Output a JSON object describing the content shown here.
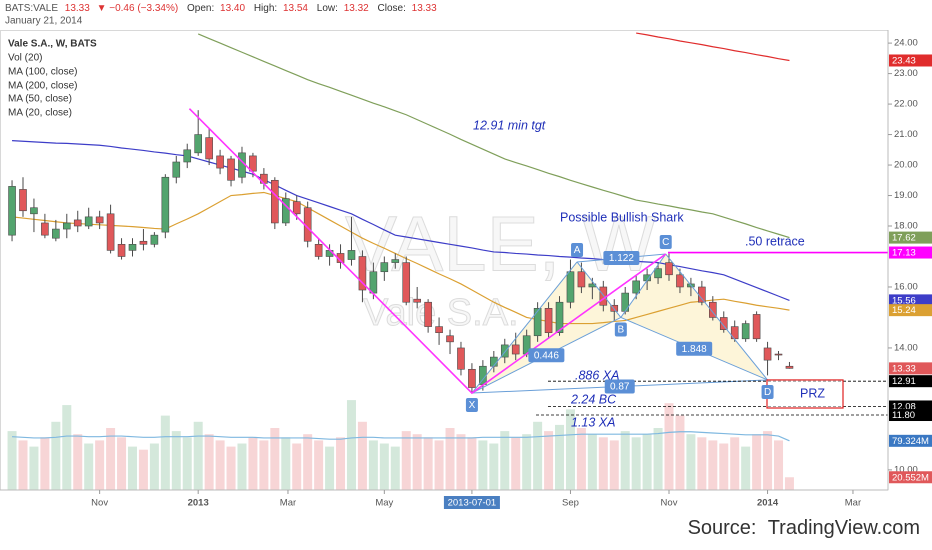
{
  "header": {
    "symbol": "BATS:VALE",
    "price": "13.33",
    "change": "▼ −0.46 (−3.34%)",
    "fields": [
      {
        "name": "Open:",
        "value": "13.40"
      },
      {
        "name": "High:",
        "value": "13.54"
      },
      {
        "name": "Low:",
        "value": "13.32"
      },
      {
        "name": "Close:",
        "value": "13.33"
      }
    ],
    "date": "January 21, 2014"
  },
  "footer": {
    "label": "Source:",
    "site": "TradingView.com"
  },
  "chart_data": {
    "type": "candlestick",
    "title": "Vale S.A., W, BATS",
    "watermark": {
      "symbol": "VALE, W",
      "name": "Vale S.A."
    },
    "x": [
      0,
      1,
      2,
      3,
      4,
      5,
      6,
      7,
      8,
      9,
      10,
      11,
      12,
      13,
      14,
      15,
      16,
      17,
      18,
      19,
      20,
      21,
      22,
      23,
      24,
      25,
      26,
      27,
      28,
      29,
      30,
      31,
      32,
      33,
      34,
      35,
      36,
      37,
      38,
      39,
      40,
      41,
      42,
      43,
      44,
      45,
      46,
      47,
      48,
      49,
      50,
      51,
      52,
      53,
      54,
      55,
      56,
      57,
      58,
      59,
      60,
      61,
      62,
      63,
      64,
      65,
      66,
      67,
      68,
      69,
      70,
      71
    ],
    "open": [
      17.7,
      19.2,
      18.4,
      18.1,
      17.6,
      17.9,
      18.2,
      18.0,
      18.3,
      18.4,
      17.4,
      17.2,
      17.5,
      17.4,
      17.8,
      19.6,
      20.1,
      20.4,
      20.9,
      20.3,
      20.2,
      19.6,
      20.3,
      19.7,
      19.5,
      18.1,
      18.8,
      18.6,
      17.4,
      17.0,
      17.1,
      16.9,
      17.0,
      15.8,
      16.5,
      16.8,
      16.8,
      15.6,
      15.5,
      14.7,
      14.4,
      14.0,
      13.3,
      12.8,
      13.4,
      13.7,
      14.1,
      13.8,
      14.4,
      15.3,
      14.5,
      15.5,
      16.5,
      16.0,
      16.0,
      15.4,
      15.2,
      15.8,
      16.2,
      16.3,
      16.8,
      16.4,
      16.0,
      16.0,
      15.5,
      15.0,
      14.7,
      14.3,
      15.1,
      14.0,
      13.8,
      13.4
    ],
    "high": [
      19.5,
      19.6,
      18.9,
      18.4,
      18.2,
      18.4,
      18.5,
      18.6,
      18.5,
      18.7,
      17.6,
      17.6,
      17.9,
      17.8,
      19.7,
      20.3,
      20.7,
      21.8,
      21.2,
      20.5,
      20.3,
      20.6,
      20.4,
      19.9,
      19.6,
      19.1,
      19.0,
      18.8,
      17.6,
      17.4,
      17.4,
      18.3,
      17.2,
      16.8,
      17.0,
      17.1,
      17.0,
      16.0,
      15.6,
      15.0,
      14.6,
      14.2,
      13.5,
      13.6,
      13.9,
      14.3,
      14.5,
      14.6,
      15.5,
      15.5,
      15.7,
      16.9,
      16.8,
      16.3,
      16.2,
      15.6,
      16.0,
      16.4,
      16.6,
      16.8,
      17.1,
      16.6,
      16.3,
      16.2,
      15.7,
      15.2,
      14.9,
      14.9,
      15.2,
      14.2,
      13.9,
      13.54
    ],
    "low": [
      17.5,
      18.3,
      17.8,
      17.6,
      17.5,
      17.6,
      17.8,
      17.9,
      17.9,
      17.1,
      16.9,
      17.0,
      17.2,
      17.3,
      17.6,
      19.4,
      19.9,
      20.3,
      20.0,
      19.7,
      19.3,
      19.4,
      19.6,
      19.2,
      17.9,
      18.0,
      18.2,
      17.3,
      16.9,
      16.7,
      16.6,
      16.7,
      15.5,
      15.6,
      16.2,
      16.6,
      15.4,
      15.3,
      14.5,
      14.1,
      13.8,
      13.1,
      12.5,
      12.6,
      13.2,
      13.5,
      13.6,
      13.7,
      14.2,
      14.3,
      14.4,
      15.3,
      15.8,
      15.6,
      15.2,
      14.9,
      15.1,
      15.6,
      15.9,
      16.1,
      16.2,
      15.8,
      15.7,
      15.4,
      14.9,
      14.5,
      14.2,
      14.2,
      14.2,
      13.1,
      13.6,
      13.32
    ],
    "close": [
      19.3,
      18.5,
      18.6,
      17.7,
      17.9,
      18.1,
      18.0,
      18.3,
      18.1,
      17.2,
      17.0,
      17.4,
      17.4,
      17.7,
      19.6,
      20.1,
      20.5,
      21.0,
      20.2,
      19.9,
      19.5,
      20.4,
      19.8,
      19.4,
      18.1,
      18.9,
      18.4,
      17.5,
      17.0,
      17.2,
      16.8,
      17.2,
      15.9,
      16.5,
      16.8,
      16.9,
      15.5,
      15.5,
      14.7,
      14.5,
      14.2,
      13.3,
      12.7,
      13.4,
      13.7,
      14.1,
      13.8,
      14.4,
      15.3,
      14.5,
      15.5,
      16.5,
      16.0,
      16.1,
      15.4,
      15.2,
      15.8,
      16.2,
      16.4,
      16.6,
      16.4,
      16.0,
      16.1,
      15.5,
      15.0,
      14.6,
      14.3,
      14.8,
      14.3,
      13.6,
      13.79,
      13.33
    ],
    "up_color": "#53a46e",
    "down_color": "#e0585a",
    "wick_color": "#4a4a4a",
    "xlim": [
      -1.1,
      80
    ],
    "ylim": [
      9.34,
      24.43
    ],
    "yticks": [
      {
        "value": 24,
        "label": "24.00"
      },
      {
        "value": 23,
        "label": "23.00"
      },
      {
        "value": 22,
        "label": "22.00"
      },
      {
        "value": 21,
        "label": "21.00"
      },
      {
        "value": 20,
        "label": "20.00"
      },
      {
        "value": 19,
        "label": "19.00"
      },
      {
        "value": 18,
        "label": "18.00"
      },
      {
        "value": 16,
        "label": "16.00"
      },
      {
        "value": 14,
        "label": "14.00"
      },
      {
        "value": 10,
        "label": "10.00"
      }
    ],
    "xticks": [
      {
        "value": 8,
        "label": "Nov"
      },
      {
        "value": 17,
        "label": "2013"
      },
      {
        "value": 25.2,
        "label": "Mar"
      },
      {
        "value": 34,
        "label": "May"
      },
      {
        "value": 42,
        "label": "2013-07-01"
      },
      {
        "value": 51,
        "label": "Sep"
      },
      {
        "value": 60,
        "label": "Nov"
      },
      {
        "value": 69,
        "label": "2014"
      },
      {
        "value": 76.8,
        "label": "Mar"
      }
    ],
    "ma": [
      {
        "name": "MA (100, close)",
        "color": "#7f9f5a",
        "values": [
          null,
          null,
          null,
          null,
          null,
          null,
          null,
          null,
          null,
          null,
          null,
          null,
          null,
          null,
          null,
          null,
          null,
          24.3,
          24.15,
          24.0,
          23.85,
          23.7,
          23.55,
          23.4,
          23.25,
          23.1,
          22.95,
          22.8,
          22.67,
          22.55,
          22.42,
          22.29,
          22.16,
          22.03,
          21.91,
          21.78,
          21.65,
          21.49,
          21.33,
          21.17,
          21.01,
          20.84,
          20.68,
          20.52,
          20.36,
          20.2,
          20.08,
          19.97,
          19.85,
          19.73,
          19.62,
          19.5,
          19.39,
          19.28,
          19.17,
          19.07,
          18.96,
          18.85,
          18.79,
          18.72,
          18.66,
          18.59,
          18.53,
          18.46,
          18.4,
          18.29,
          18.18,
          18.07,
          17.95,
          17.84,
          17.73,
          17.62
        ]
      },
      {
        "name": "MA (200, close)",
        "color": "#e02c2c",
        "values": [
          null,
          null,
          null,
          null,
          null,
          null,
          null,
          null,
          null,
          null,
          null,
          null,
          null,
          null,
          null,
          null,
          null,
          null,
          null,
          null,
          null,
          null,
          null,
          null,
          null,
          null,
          null,
          null,
          null,
          null,
          null,
          null,
          null,
          null,
          null,
          null,
          null,
          null,
          null,
          null,
          null,
          null,
          null,
          null,
          null,
          null,
          null,
          null,
          null,
          null,
          null,
          null,
          null,
          null,
          null,
          null,
          null,
          24.33,
          24.27,
          24.2,
          24.14,
          24.07,
          24.01,
          23.95,
          23.88,
          23.82,
          23.75,
          23.69,
          23.62,
          23.56,
          23.49,
          23.43
        ]
      },
      {
        "name": "MA (50, close)",
        "color": "#3d3dc8",
        "values": [
          20.8,
          20.78,
          20.76,
          20.74,
          20.72,
          20.71,
          20.69,
          20.67,
          20.65,
          20.61,
          20.56,
          20.52,
          20.48,
          20.43,
          20.39,
          20.34,
          20.3,
          20.2,
          20.1,
          20.0,
          19.9,
          19.8,
          19.7,
          19.52,
          19.35,
          19.17,
          19.0,
          18.88,
          18.76,
          18.64,
          18.52,
          18.4,
          18.22,
          18.05,
          17.87,
          17.7,
          17.64,
          17.58,
          17.52,
          17.46,
          17.4,
          17.34,
          17.28,
          17.21,
          17.15,
          17.13,
          17.1,
          17.08,
          17.05,
          17.03,
          17.0,
          16.98,
          16.95,
          16.93,
          16.9,
          16.88,
          16.86,
          16.84,
          16.82,
          16.8,
          16.73,
          16.67,
          16.6,
          16.53,
          16.47,
          16.4,
          16.26,
          16.12,
          15.98,
          15.84,
          15.7,
          15.56
        ]
      },
      {
        "name": "MA (20, close)",
        "color": "#dba032",
        "values": [
          18.3,
          18.26,
          18.22,
          18.18,
          18.14,
          18.1,
          18.08,
          18.06,
          18.04,
          18.02,
          18.0,
          17.98,
          17.95,
          17.92,
          17.9,
          18.07,
          18.23,
          18.4,
          18.6,
          18.8,
          19.0,
          19.03,
          19.07,
          19.1,
          19.0,
          18.9,
          18.8,
          18.6,
          18.4,
          18.2,
          18.0,
          17.8,
          17.6,
          17.43,
          17.27,
          17.1,
          16.93,
          16.77,
          16.6,
          16.43,
          16.27,
          16.1,
          15.9,
          15.7,
          15.5,
          15.33,
          15.17,
          15.0,
          14.93,
          14.87,
          14.8,
          14.8,
          14.8,
          14.8,
          14.83,
          14.87,
          14.9,
          15.0,
          15.1,
          15.2,
          15.3,
          15.4,
          15.5,
          15.53,
          15.57,
          15.6,
          15.53,
          15.47,
          15.4,
          15.35,
          15.3,
          15.24
        ]
      }
    ],
    "volume": {
      "name": "Vol (20)",
      "lim": [
        0,
        742
      ],
      "ma_color": "#7fb8e0",
      "ma_box_color": "#3a78c3",
      "last_label": "20.552M",
      "ma_last_label": "79.324M",
      "values": [
        95,
        80,
        70,
        85,
        110,
        137,
        90,
        75,
        80,
        100,
        85,
        70,
        65,
        75,
        120,
        95,
        85,
        110,
        90,
        80,
        70,
        75,
        85,
        80,
        100,
        85,
        75,
        90,
        80,
        70,
        85,
        145,
        110,
        80,
        75,
        70,
        95,
        90,
        85,
        80,
        100,
        90,
        85,
        80,
        75,
        95,
        85,
        90,
        110,
        95,
        105,
        130,
        100,
        90,
        85,
        80,
        95,
        85,
        90,
        100,
        140,
        120,
        90,
        85,
        80,
        75,
        85,
        70,
        90,
        95,
        80,
        20.552
      ],
      "ma_values": [
        86,
        85,
        84,
        84,
        85,
        87,
        87,
        86,
        86,
        87,
        87,
        86,
        85,
        85,
        86,
        86,
        86,
        87,
        87,
        86,
        85,
        85,
        85,
        84,
        84,
        84,
        84,
        84,
        83,
        82,
        82,
        84,
        85,
        85,
        84,
        84,
        84,
        84,
        84,
        84,
        84,
        84,
        84,
        85,
        85,
        85,
        85,
        85,
        86,
        87,
        88,
        89,
        90,
        90,
        90,
        90,
        90,
        90,
        90,
        91,
        93,
        94,
        94,
        93,
        92,
        91,
        90,
        89,
        89,
        89,
        87,
        79.324
      ]
    },
    "pattern": {
      "color": "#6a9fd8",
      "fill": "#fbeec0",
      "label_color": "#5b8fd6",
      "points": [
        {
          "label": "X",
          "x": 42,
          "y": 12.52
        },
        {
          "label": "A",
          "x": 51.6,
          "y": 16.82
        },
        {
          "label": "B",
          "x": 55.6,
          "y": 15.0
        },
        {
          "label": "C",
          "x": 59.7,
          "y": 17.08
        },
        {
          "label": "D",
          "x": 69,
          "y": 12.95
        }
      ],
      "ratios": [
        0.446,
        1.122,
        1.848,
        0.87
      ]
    },
    "trend_color": "#ff33ff",
    "trend_points": [
      {
        "x": 16.2,
        "y": 21.85
      },
      {
        "x": 42,
        "y": 12.52
      },
      {
        "x": 59.7,
        "y": 17.08
      }
    ],
    "levels": [
      {
        "value": 17.13,
        "label": "17.13",
        "text": ".50 retrace",
        "color": "#ff00ff",
        "style": "solid"
      },
      {
        "value": 12.91,
        "label": "12.91",
        "text": ".886 XA",
        "color": "#000000",
        "style": "dashed"
      },
      {
        "value": 12.08,
        "label": "12.08",
        "text": "2.24 BC",
        "color": "#000000",
        "style": "dashed"
      },
      {
        "value": 11.8,
        "label": "11.80",
        "text": "1.13 XA",
        "color": "#000000",
        "style": "dashed"
      }
    ],
    "annotations": [
      "12.91 min tgt",
      "Possible Bullish Shark"
    ],
    "prz": {
      "label": "PRZ",
      "top": 12.95,
      "bottom": 12.03,
      "color": "#e02020"
    }
  }
}
